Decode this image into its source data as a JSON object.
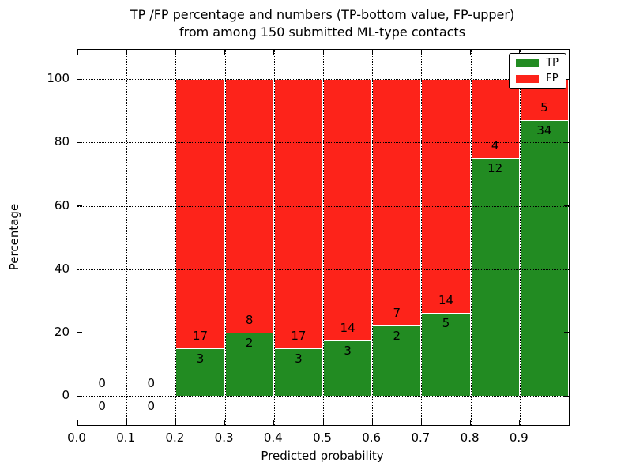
{
  "figure": {
    "title_line1": "TP /FP percentage and numbers (TP-bottom value, FP-upper)",
    "title_line2": "from among 150 submitted ML-type contacts"
  },
  "chart_data": {
    "type": "bar",
    "stacked": true,
    "title": "TP /FP percentage and numbers (TP-bottom value, FP-upper)\nfrom among 150 submitted ML-type contacts",
    "xlabel": "Predicted probability",
    "ylabel": "Percentage",
    "xlim": [
      0.0,
      1.0
    ],
    "ylim": [
      -9.2,
      109.3
    ],
    "x_tick_values": [
      0.0,
      0.1,
      0.2,
      0.3,
      0.4,
      0.5,
      0.6,
      0.7,
      0.8,
      0.9
    ],
    "x_tick_labels": [
      "0.0",
      "0.1",
      "0.2",
      "0.3",
      "0.4",
      "0.5",
      "0.6",
      "0.7",
      "0.8",
      "0.9"
    ],
    "y_tick_values": [
      0,
      20,
      40,
      60,
      80,
      100
    ],
    "y_tick_labels": [
      "0",
      "20",
      "40",
      "60",
      "80",
      "100"
    ],
    "grid": "dotted-on-top",
    "legend_position": "upper-right",
    "colors": {
      "tp": "#228b22",
      "fp": "#fd231a",
      "bar_edge": "#ffffff"
    },
    "legend": [
      {
        "label": "TP",
        "series": "tp"
      },
      {
        "label": "FP",
        "series": "fp"
      }
    ],
    "total_contacts": 150,
    "bins": [
      {
        "x_start": 0.0,
        "x_end": 0.1,
        "tp_count": 0,
        "fp_count": 0,
        "tp_pct": 0,
        "fp_pct": 0,
        "has_bar": false
      },
      {
        "x_start": 0.1,
        "x_end": 0.2,
        "tp_count": 0,
        "fp_count": 0,
        "tp_pct": 0,
        "fp_pct": 0,
        "has_bar": false
      },
      {
        "x_start": 0.2,
        "x_end": 0.3,
        "tp_count": 3,
        "fp_count": 17,
        "tp_pct": 15.0,
        "fp_pct": 85.0,
        "has_bar": true
      },
      {
        "x_start": 0.3,
        "x_end": 0.4,
        "tp_count": 2,
        "fp_count": 8,
        "tp_pct": 20.0,
        "fp_pct": 80.0,
        "has_bar": true
      },
      {
        "x_start": 0.4,
        "x_end": 0.5,
        "tp_count": 3,
        "fp_count": 17,
        "tp_pct": 15.0,
        "fp_pct": 85.0,
        "has_bar": true
      },
      {
        "x_start": 0.5,
        "x_end": 0.6,
        "tp_count": 3,
        "fp_count": 14,
        "tp_pct": 17.6,
        "fp_pct": 82.4,
        "has_bar": true
      },
      {
        "x_start": 0.6,
        "x_end": 0.7,
        "tp_count": 2,
        "fp_count": 7,
        "tp_pct": 22.2,
        "fp_pct": 77.8,
        "has_bar": true
      },
      {
        "x_start": 0.7,
        "x_end": 0.8,
        "tp_count": 5,
        "fp_count": 14,
        "tp_pct": 26.3,
        "fp_pct": 73.7,
        "has_bar": true
      },
      {
        "x_start": 0.8,
        "x_end": 0.9,
        "tp_count": 12,
        "fp_count": 4,
        "tp_pct": 75.0,
        "fp_pct": 25.0,
        "has_bar": true
      },
      {
        "x_start": 0.9,
        "x_end": 1.0,
        "tp_count": 34,
        "fp_count": 5,
        "tp_pct": 87.2,
        "fp_pct": 12.8,
        "has_bar": true
      }
    ]
  }
}
